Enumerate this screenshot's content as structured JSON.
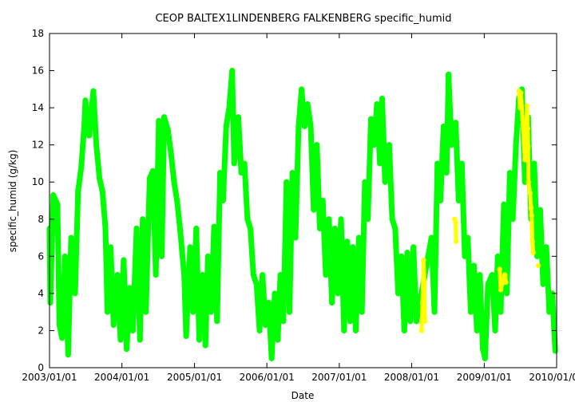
{
  "chart_data": {
    "type": "scatter",
    "title": "CEOP BALTEX1LINDENBERG FALKENBERG  specific_humid",
    "xlabel": "Date",
    "ylabel": "specific_humid (g/kg)",
    "ylim": [
      0,
      18
    ],
    "y_ticks": [
      "0",
      "2",
      "4",
      "6",
      "8",
      "10",
      "12",
      "14",
      "16",
      "18"
    ],
    "xlim": [
      "2003-01-01",
      "2010-01-01"
    ],
    "x_ticks": [
      "2003/01/01",
      "2004/01/01",
      "2005/01/01",
      "2006/01/01",
      "2007/01/01",
      "2008/01/01",
      "2009/01/01",
      "2010/01/01"
    ],
    "grid": false,
    "legend": "none",
    "series": [
      {
        "color": "#00ff00",
        "points": [
          [
            "2003-01-01",
            7.5
          ],
          [
            "2003-01-05",
            3.5
          ],
          [
            "2003-01-20",
            9.3
          ],
          [
            "2003-02-10",
            8.8
          ],
          [
            "2003-02-20",
            2.3
          ],
          [
            "2003-03-05",
            1.6
          ],
          [
            "2003-03-20",
            6.0
          ],
          [
            "2003-04-05",
            0.7
          ],
          [
            "2003-04-20",
            7.0
          ],
          [
            "2003-05-10",
            4.0
          ],
          [
            "2003-05-25",
            9.5
          ],
          [
            "2003-06-10",
            10.8
          ],
          [
            "2003-06-25",
            13.0
          ],
          [
            "2003-07-01",
            14.4
          ],
          [
            "2003-07-20",
            12.5
          ],
          [
            "2003-08-10",
            14.9
          ],
          [
            "2003-08-25",
            12.0
          ],
          [
            "2003-09-10",
            10.2
          ],
          [
            "2003-09-25",
            9.5
          ],
          [
            "2003-10-10",
            7.5
          ],
          [
            "2003-10-20",
            3.0
          ],
          [
            "2003-11-05",
            6.5
          ],
          [
            "2003-11-20",
            2.3
          ],
          [
            "2003-12-10",
            5.0
          ],
          [
            "2003-12-25",
            1.5
          ],
          [
            "2004-01-10",
            5.8
          ],
          [
            "2004-01-25",
            1.0
          ],
          [
            "2004-02-10",
            4.3
          ],
          [
            "2004-02-25",
            2.0
          ],
          [
            "2004-03-15",
            7.5
          ],
          [
            "2004-04-01",
            1.5
          ],
          [
            "2004-04-15",
            8.0
          ],
          [
            "2004-05-01",
            3.0
          ],
          [
            "2004-05-20",
            10.2
          ],
          [
            "2004-06-05",
            10.6
          ],
          [
            "2004-06-20",
            5.0
          ],
          [
            "2004-07-05",
            13.3
          ],
          [
            "2004-07-20",
            6.0
          ],
          [
            "2004-08-01",
            13.5
          ],
          [
            "2004-08-20",
            12.8
          ],
          [
            "2004-09-05",
            11.5
          ],
          [
            "2004-09-20",
            10.0
          ],
          [
            "2004-10-05",
            9.0
          ],
          [
            "2004-10-20",
            7.5
          ],
          [
            "2004-11-10",
            5.0
          ],
          [
            "2004-11-20",
            1.7
          ],
          [
            "2004-12-10",
            6.5
          ],
          [
            "2004-12-25",
            3.0
          ],
          [
            "2005-01-10",
            7.5
          ],
          [
            "2005-01-25",
            1.5
          ],
          [
            "2005-02-10",
            5.0
          ],
          [
            "2005-02-25",
            1.2
          ],
          [
            "2005-03-10",
            6.0
          ],
          [
            "2005-03-25",
            3.0
          ],
          [
            "2005-04-10",
            7.6
          ],
          [
            "2005-04-25",
            2.5
          ],
          [
            "2005-05-10",
            10.5
          ],
          [
            "2005-05-25",
            9.0
          ],
          [
            "2005-06-10",
            13.0
          ],
          [
            "2005-06-25",
            14.0
          ],
          [
            "2005-07-10",
            16.0
          ],
          [
            "2005-07-20",
            11.0
          ],
          [
            "2005-08-10",
            13.5
          ],
          [
            "2005-08-25",
            10.5
          ],
          [
            "2005-09-10",
            11.0
          ],
          [
            "2005-09-25",
            8.0
          ],
          [
            "2005-10-10",
            7.5
          ],
          [
            "2005-10-25",
            5.0
          ],
          [
            "2005-11-10",
            4.5
          ],
          [
            "2005-11-25",
            2.0
          ],
          [
            "2005-12-10",
            5.0
          ],
          [
            "2005-12-25",
            2.3
          ],
          [
            "2006-01-10",
            3.5
          ],
          [
            "2006-01-25",
            0.5
          ],
          [
            "2006-02-10",
            4.0
          ],
          [
            "2006-02-25",
            1.5
          ],
          [
            "2006-03-10",
            5.0
          ],
          [
            "2006-03-25",
            2.5
          ],
          [
            "2006-04-10",
            10.0
          ],
          [
            "2006-04-25",
            3.0
          ],
          [
            "2006-05-10",
            10.5
          ],
          [
            "2006-05-25",
            7.0
          ],
          [
            "2006-06-10",
            13.0
          ],
          [
            "2006-06-25",
            15.0
          ],
          [
            "2006-07-10",
            13.0
          ],
          [
            "2006-07-25",
            14.2
          ],
          [
            "2006-08-10",
            13.0
          ],
          [
            "2006-08-25",
            8.5
          ],
          [
            "2006-09-10",
            12.0
          ],
          [
            "2006-09-25",
            7.5
          ],
          [
            "2006-10-10",
            9.0
          ],
          [
            "2006-10-25",
            5.0
          ],
          [
            "2006-11-10",
            8.0
          ],
          [
            "2006-11-25",
            3.5
          ],
          [
            "2006-12-10",
            7.5
          ],
          [
            "2006-12-25",
            4.0
          ],
          [
            "2007-01-10",
            8.0
          ],
          [
            "2007-01-25",
            2.0
          ],
          [
            "2007-02-10",
            6.8
          ],
          [
            "2007-02-25",
            2.5
          ],
          [
            "2007-03-10",
            6.5
          ],
          [
            "2007-03-25",
            2.0
          ],
          [
            "2007-04-10",
            7.0
          ],
          [
            "2007-04-25",
            3.0
          ],
          [
            "2007-05-10",
            10.0
          ],
          [
            "2007-05-25",
            8.0
          ],
          [
            "2007-06-10",
            13.4
          ],
          [
            "2007-06-25",
            12.0
          ],
          [
            "2007-07-10",
            14.2
          ],
          [
            "2007-07-25",
            11.0
          ],
          [
            "2007-08-05",
            14.5
          ],
          [
            "2007-08-20",
            10.0
          ],
          [
            "2007-09-10",
            12.0
          ],
          [
            "2007-09-25",
            8.0
          ],
          [
            "2007-10-10",
            7.5
          ],
          [
            "2007-10-25",
            4.0
          ],
          [
            "2007-11-10",
            6.0
          ],
          [
            "2007-11-25",
            2.0
          ],
          [
            "2007-12-10",
            6.2
          ],
          [
            "2007-12-25",
            2.5
          ],
          [
            "2008-01-10",
            6.5
          ],
          [
            "2008-01-25",
            2.5
          ],
          [
            "2008-04-10",
            7.0
          ],
          [
            "2008-04-25",
            3.0
          ],
          [
            "2008-05-10",
            11.0
          ],
          [
            "2008-05-25",
            9.0
          ],
          [
            "2008-06-10",
            13.0
          ],
          [
            "2008-06-25",
            10.5
          ],
          [
            "2008-07-05",
            15.8
          ],
          [
            "2008-07-20",
            12.0
          ],
          [
            "2008-08-10",
            13.2
          ],
          [
            "2008-08-25",
            9.0
          ],
          [
            "2008-09-10",
            11.0
          ],
          [
            "2008-09-25",
            6.0
          ],
          [
            "2008-10-10",
            7.0
          ],
          [
            "2008-10-25",
            3.0
          ],
          [
            "2008-11-10",
            5.5
          ],
          [
            "2008-11-25",
            2.0
          ],
          [
            "2008-12-10",
            5.0
          ],
          [
            "2008-12-25",
            1.0
          ],
          [
            "2009-01-05",
            0.5
          ],
          [
            "2009-01-20",
            4.5
          ],
          [
            "2009-02-10",
            5.0
          ],
          [
            "2009-02-25",
            2.0
          ],
          [
            "2009-03-10",
            6.0
          ],
          [
            "2009-03-25",
            3.0
          ],
          [
            "2009-04-10",
            8.8
          ],
          [
            "2009-04-25",
            4.0
          ],
          [
            "2009-05-10",
            10.5
          ],
          [
            "2009-05-25",
            8.0
          ],
          [
            "2009-06-10",
            12.0
          ],
          [
            "2009-06-25",
            14.5
          ],
          [
            "2009-07-10",
            15.0
          ],
          [
            "2009-07-25",
            10.0
          ],
          [
            "2009-08-10",
            13.5
          ],
          [
            "2009-08-25",
            8.0
          ],
          [
            "2009-09-10",
            11.0
          ],
          [
            "2009-09-25",
            6.0
          ],
          [
            "2009-10-10",
            8.5
          ],
          [
            "2009-10-25",
            4.5
          ],
          [
            "2009-11-10",
            6.5
          ],
          [
            "2009-11-25",
            3.0
          ],
          [
            "2009-12-10",
            4.0
          ],
          [
            "2009-12-25",
            0.9
          ]
        ]
      },
      {
        "color": "#ffff00",
        "points": [
          [
            "2008-02-20",
            2.0
          ],
          [
            "2008-02-25",
            3.5
          ],
          [
            "2008-03-01",
            5.8
          ],
          [
            "2008-03-05",
            4.5
          ],
          [
            "2008-03-08",
            2.5
          ],
          [
            "2008-08-05",
            8.0
          ],
          [
            "2008-08-10",
            7.8
          ],
          [
            "2008-08-12",
            6.8
          ],
          [
            "2009-03-20",
            5.3
          ],
          [
            "2009-03-25",
            4.2
          ],
          [
            "2009-04-15",
            5.0
          ],
          [
            "2009-04-20",
            4.6
          ],
          [
            "2009-06-25",
            14.9
          ],
          [
            "2009-07-01",
            14.0
          ],
          [
            "2009-07-05",
            14.8
          ],
          [
            "2009-07-25",
            11.2
          ],
          [
            "2009-08-05",
            14.1
          ],
          [
            "2009-08-08",
            12.9
          ],
          [
            "2009-08-10",
            11.9
          ],
          [
            "2009-08-12",
            10.0
          ],
          [
            "2009-08-20",
            9.4
          ],
          [
            "2009-08-25",
            8.6
          ],
          [
            "2009-08-28",
            8.2
          ],
          [
            "2009-09-01",
            6.8
          ],
          [
            "2009-09-05",
            6.2
          ],
          [
            "2009-10-01",
            5.5
          ]
        ]
      }
    ]
  }
}
